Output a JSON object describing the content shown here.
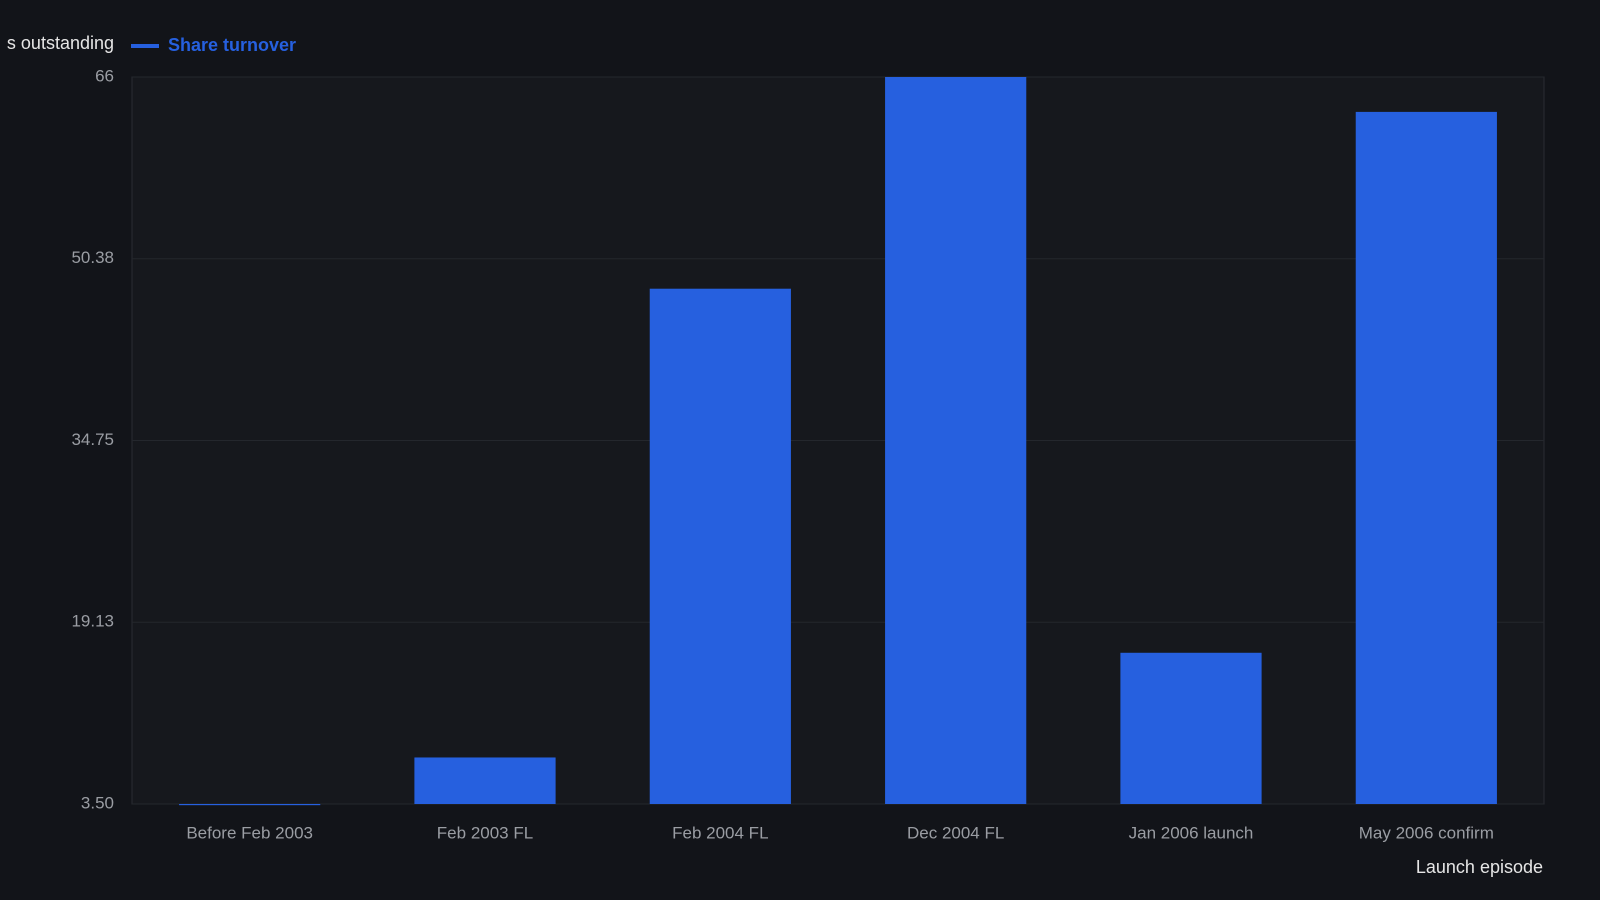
{
  "chart_data": {
    "type": "bar",
    "legend_extra": [
      "s outstanding"
    ],
    "series": [
      {
        "name": "Share turnover",
        "color": "#2660df",
        "values": [
          3.4,
          7.5,
          47.8,
          66,
          16.5,
          63.0
        ]
      }
    ],
    "categories": [
      "Before Feb 2003",
      "Feb 2003 FL",
      "Feb 2004 FL",
      "Dec 2004 FL",
      "Jan 2006 launch",
      "May 2006 confirm"
    ],
    "x_label": "Launch episode",
    "ylim": [
      3.5,
      66
    ],
    "yticks": [
      {
        "value": 3.5,
        "label": "3.50"
      },
      19.13,
      34.75,
      50.38,
      66
    ],
    "grid": true
  }
}
